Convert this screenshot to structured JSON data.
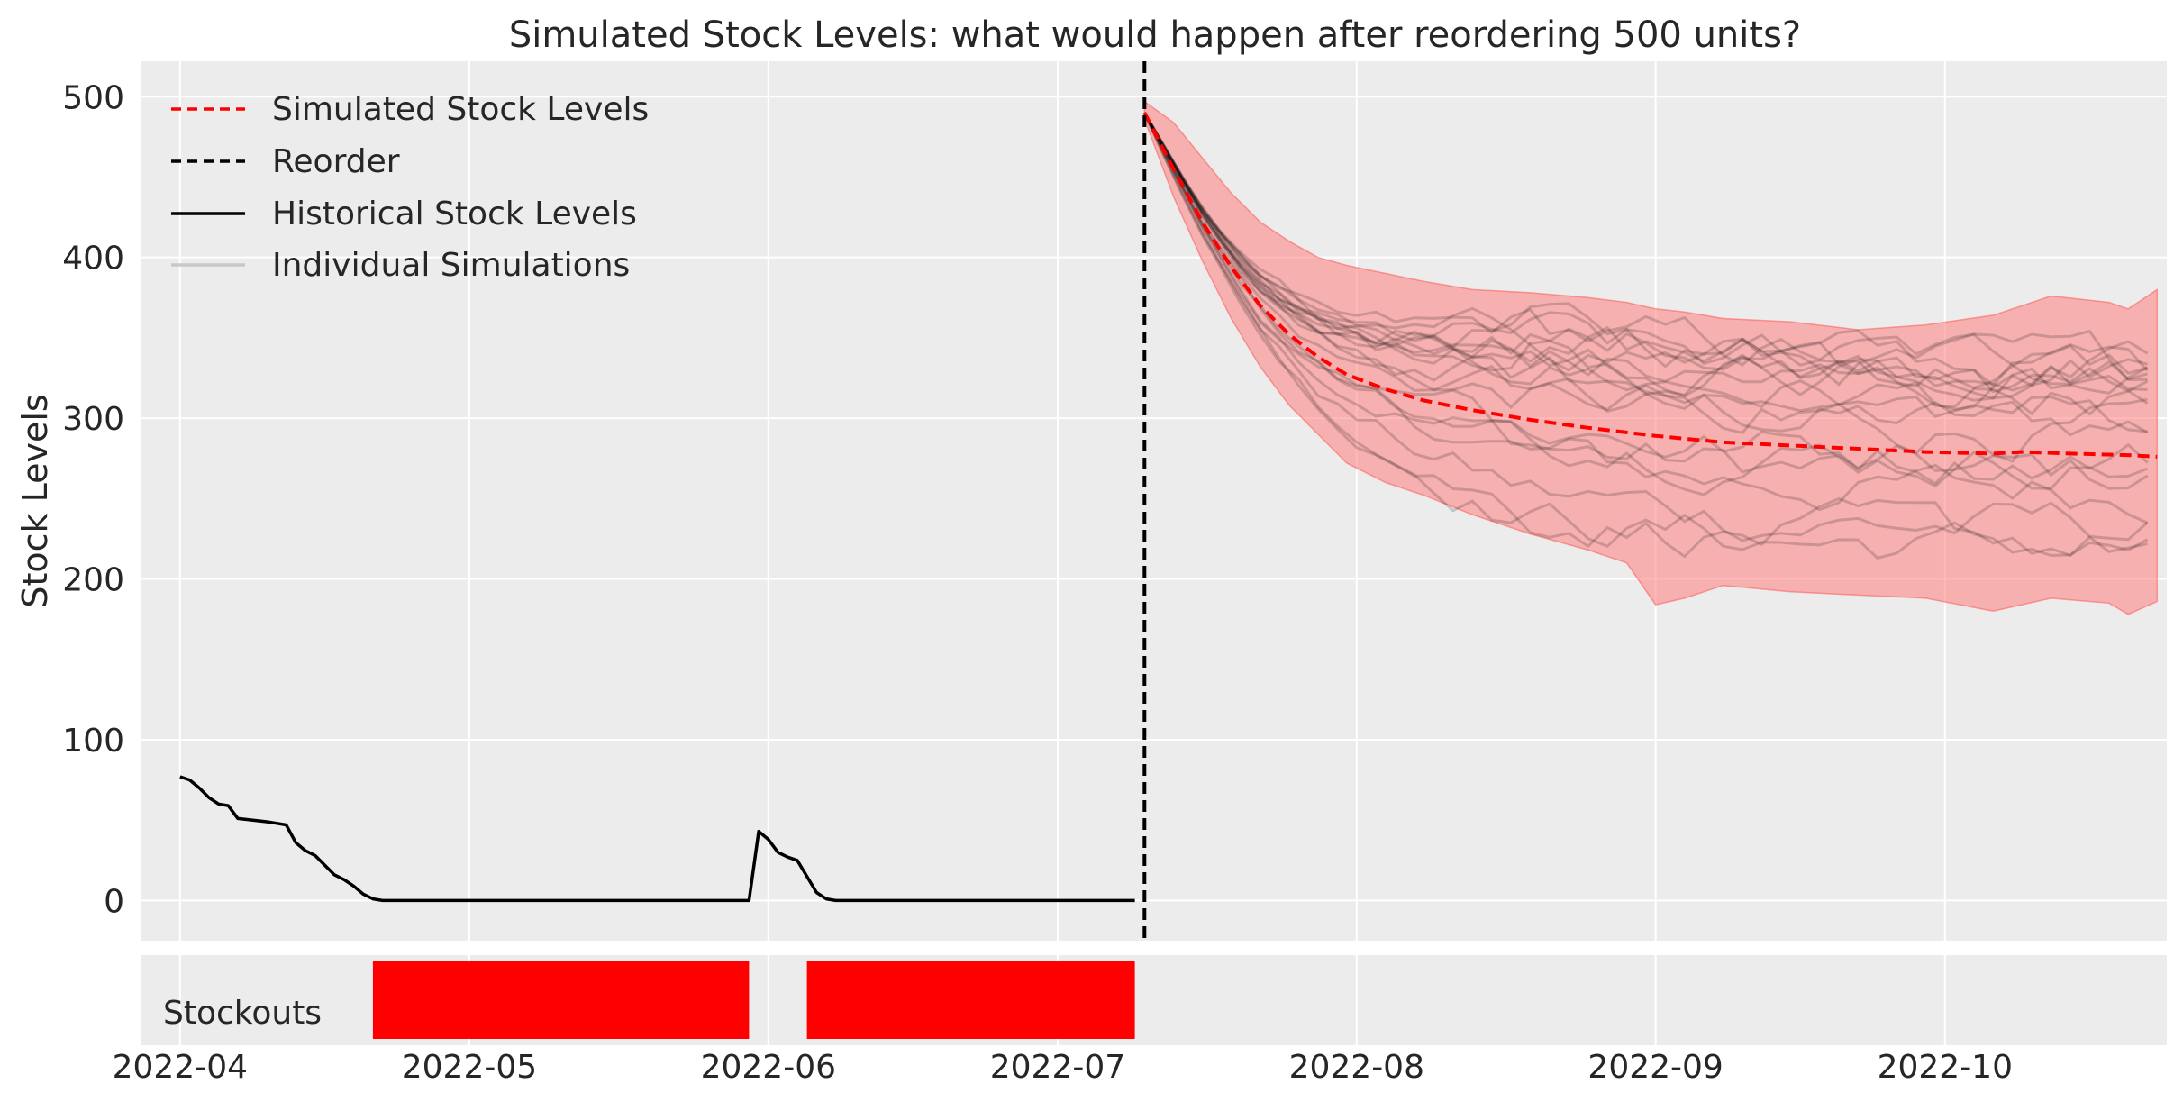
{
  "chart_data": [
    {
      "type": "line",
      "title": "Simulated Stock Levels: what would happen after reordering 500 units?",
      "xlabel": "",
      "ylabel": "Stock Levels",
      "ylim": [
        -25,
        522
      ],
      "xlim": [
        "2022-03-28",
        "2022-10-24"
      ],
      "yticks": [
        0,
        100,
        200,
        300,
        400,
        500
      ],
      "grid": true,
      "background": "#ececec",
      "legend": {
        "position": "top-left",
        "entries": [
          {
            "label": "Simulated Stock Levels",
            "style": "dashed",
            "color": "#ff0000"
          },
          {
            "label": "Reorder",
            "style": "dashed",
            "color": "#000000"
          },
          {
            "label": "Historical Stock Levels",
            "style": "solid",
            "color": "#000000"
          },
          {
            "label": "Individual Simulations",
            "style": "solid",
            "color": "#c8c8c8"
          }
        ]
      },
      "reorder_date": "2022-07-10",
      "reorder_color": "#000000",
      "historical": {
        "name": "Historical Stock Levels",
        "color": "#000000",
        "points": [
          [
            "2022-04-01",
            77
          ],
          [
            "2022-04-02",
            75
          ],
          [
            "2022-04-03",
            70
          ],
          [
            "2022-04-04",
            64
          ],
          [
            "2022-04-05",
            60
          ],
          [
            "2022-04-06",
            59
          ],
          [
            "2022-04-07",
            51
          ],
          [
            "2022-04-10",
            49
          ],
          [
            "2022-04-11",
            48
          ],
          [
            "2022-04-12",
            47
          ],
          [
            "2022-04-13",
            36
          ],
          [
            "2022-04-14",
            31
          ],
          [
            "2022-04-15",
            28
          ],
          [
            "2022-04-16",
            22
          ],
          [
            "2022-04-17",
            16
          ],
          [
            "2022-04-18",
            13
          ],
          [
            "2022-04-19",
            9
          ],
          [
            "2022-04-20",
            4
          ],
          [
            "2022-04-21",
            1
          ],
          [
            "2022-04-22",
            0
          ],
          [
            "2022-05-30",
            0
          ],
          [
            "2022-05-31",
            43
          ],
          [
            "2022-06-01",
            38
          ],
          [
            "2022-06-02",
            30
          ],
          [
            "2022-06-03",
            27
          ],
          [
            "2022-06-04",
            25
          ],
          [
            "2022-06-06",
            5
          ],
          [
            "2022-06-07",
            1
          ],
          [
            "2022-06-08",
            0
          ],
          [
            "2022-07-09",
            0
          ]
        ]
      },
      "simulated_mean": {
        "name": "Simulated Stock Levels",
        "color": "#ff0000",
        "points": [
          [
            "2022-07-10",
            490
          ],
          [
            "2022-07-13",
            455
          ],
          [
            "2022-07-16",
            422
          ],
          [
            "2022-07-19",
            394
          ],
          [
            "2022-07-22",
            370
          ],
          [
            "2022-07-25",
            352
          ],
          [
            "2022-07-28",
            338
          ],
          [
            "2022-07-31",
            327
          ],
          [
            "2022-08-04",
            318
          ],
          [
            "2022-08-08",
            311
          ],
          [
            "2022-08-13",
            305
          ],
          [
            "2022-08-19",
            299
          ],
          [
            "2022-08-25",
            294
          ],
          [
            "2022-09-01",
            289
          ],
          [
            "2022-09-08",
            285
          ],
          [
            "2022-09-15",
            283
          ],
          [
            "2022-09-22",
            281
          ],
          [
            "2022-09-29",
            279
          ],
          [
            "2022-10-06",
            278
          ],
          [
            "2022-10-09",
            279
          ],
          [
            "2022-10-14",
            278
          ],
          [
            "2022-10-20",
            277
          ],
          [
            "2022-10-23",
            276
          ]
        ]
      },
      "interval": {
        "name": "Simulation interval",
        "color": "#ff7f7f",
        "points": [
          [
            "2022-07-10",
            486,
            497
          ],
          [
            "2022-07-13",
            438,
            484
          ],
          [
            "2022-07-16",
            398,
            462
          ],
          [
            "2022-07-19",
            362,
            440
          ],
          [
            "2022-07-22",
            332,
            422
          ],
          [
            "2022-07-25",
            308,
            410
          ],
          [
            "2022-07-28",
            290,
            400
          ],
          [
            "2022-07-31",
            272,
            395
          ],
          [
            "2022-08-04",
            260,
            390
          ],
          [
            "2022-08-08",
            252,
            385
          ],
          [
            "2022-08-13",
            240,
            380
          ],
          [
            "2022-08-19",
            228,
            378
          ],
          [
            "2022-08-25",
            218,
            375
          ],
          [
            "2022-08-29",
            210,
            372
          ],
          [
            "2022-09-01",
            184,
            368
          ],
          [
            "2022-09-04",
            188,
            366
          ],
          [
            "2022-09-08",
            196,
            362
          ],
          [
            "2022-09-15",
            192,
            360
          ],
          [
            "2022-09-22",
            190,
            355
          ],
          [
            "2022-09-29",
            188,
            358
          ],
          [
            "2022-10-06",
            180,
            364
          ],
          [
            "2022-10-12",
            188,
            376
          ],
          [
            "2022-10-18",
            185,
            372
          ],
          [
            "2022-10-20",
            178,
            368
          ],
          [
            "2022-10-23",
            186,
            380
          ]
        ]
      },
      "individual_simulations": {
        "name": "Individual Simulations",
        "color": "#000000",
        "count": 20,
        "start": 490,
        "end_range": [
          215,
          345
        ]
      }
    },
    {
      "type": "bar",
      "title": "",
      "label": "Stockouts",
      "color": "#ff0000",
      "x_tick_labels": [
        "2022-04",
        "2022-05",
        "2022-06",
        "2022-07",
        "2022-08",
        "2022-09",
        "2022-10"
      ],
      "x_ticks": [
        "2022-04-01",
        "2022-05-01",
        "2022-06-01",
        "2022-07-01",
        "2022-08-01",
        "2022-09-01",
        "2022-10-01"
      ],
      "periods": [
        {
          "start": "2022-04-21",
          "end": "2022-05-30"
        },
        {
          "start": "2022-06-05",
          "end": "2022-07-09"
        }
      ]
    }
  ]
}
